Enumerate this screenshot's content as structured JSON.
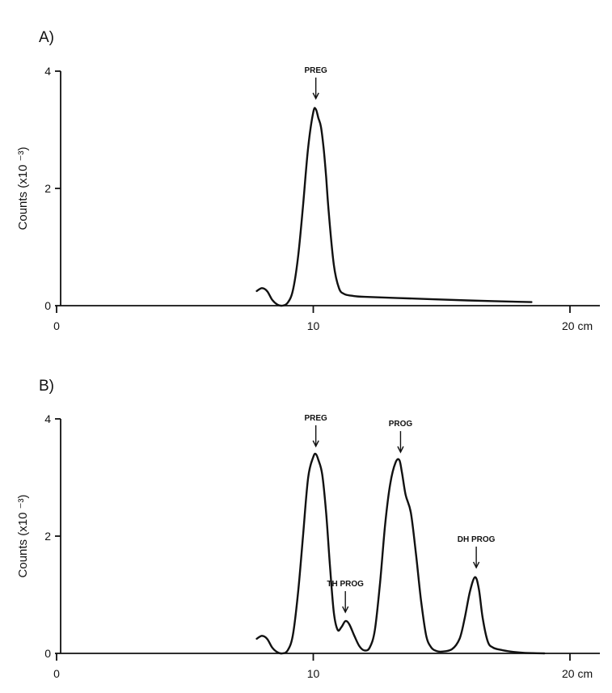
{
  "chart_data": [
    {
      "type": "line",
      "panel_label": "A)",
      "title": "",
      "xlabel": "",
      "ylabel": "Counts (x10 ⁻³)",
      "x_unit_label": "cm",
      "xlim": [
        0,
        21
      ],
      "ylim": [
        0,
        4
      ],
      "x_ticks": [
        0,
        10,
        20
      ],
      "y_ticks": [
        0,
        2,
        4
      ],
      "grid": false,
      "series": [
        {
          "x": [
            7.8,
            8.0,
            8.2,
            8.4,
            8.6,
            8.8,
            9.0,
            9.2,
            9.4,
            9.6,
            9.8,
            10.0,
            10.1,
            10.2,
            10.3,
            10.4,
            10.5,
            10.6,
            10.8,
            11.0,
            11.2,
            11.5,
            12.0,
            14.0,
            16.0,
            18.5
          ],
          "y": [
            0.25,
            0.3,
            0.25,
            0.1,
            0.02,
            0.0,
            0.05,
            0.25,
            0.8,
            1.7,
            2.7,
            3.3,
            3.35,
            3.2,
            3.05,
            2.7,
            2.2,
            1.6,
            0.7,
            0.3,
            0.2,
            0.17,
            0.15,
            0.12,
            0.09,
            0.06
          ]
        }
      ],
      "annotations": [
        {
          "text": "PREG",
          "x": 10.1,
          "y_arrow": 3.45
        }
      ]
    },
    {
      "type": "line",
      "panel_label": "B)",
      "title": "",
      "xlabel": "",
      "ylabel": "Counts (x10 ⁻³)",
      "x_unit_label": "cm",
      "xlim": [
        0,
        21
      ],
      "ylim": [
        0,
        4
      ],
      "x_ticks": [
        0,
        10,
        20
      ],
      "y_ticks": [
        0,
        2,
        4
      ],
      "grid": false,
      "series": [
        {
          "x": [
            7.8,
            8.0,
            8.2,
            8.4,
            8.6,
            8.8,
            9.0,
            9.2,
            9.4,
            9.6,
            9.8,
            10.0,
            10.1,
            10.2,
            10.35,
            10.5,
            10.65,
            10.8,
            10.95,
            11.1,
            11.25,
            11.4,
            11.6,
            11.8,
            12.0,
            12.2,
            12.4,
            12.6,
            12.8,
            13.0,
            13.2,
            13.35,
            13.45,
            13.6,
            13.8,
            14.0,
            14.2,
            14.4,
            14.6,
            14.8,
            15.0,
            15.4,
            15.7,
            15.9,
            16.1,
            16.3,
            16.45,
            16.6,
            16.8,
            17.0,
            17.3,
            17.7,
            18.2,
            19.0
          ],
          "y": [
            0.25,
            0.3,
            0.25,
            0.1,
            0.02,
            0.0,
            0.05,
            0.3,
            1.0,
            2.0,
            3.0,
            3.35,
            3.4,
            3.3,
            3.05,
            2.4,
            1.5,
            0.7,
            0.4,
            0.45,
            0.55,
            0.5,
            0.3,
            0.12,
            0.05,
            0.1,
            0.4,
            1.2,
            2.2,
            2.9,
            3.25,
            3.3,
            3.1,
            2.7,
            2.4,
            1.7,
            0.9,
            0.3,
            0.1,
            0.04,
            0.03,
            0.07,
            0.25,
            0.6,
            1.05,
            1.3,
            1.1,
            0.6,
            0.2,
            0.1,
            0.06,
            0.03,
            0.01,
            0.0
          ]
        }
      ],
      "annotations": [
        {
          "text": "PREG",
          "x": 10.1,
          "y_arrow": 3.45
        },
        {
          "text": "TH PROG",
          "x": 11.25,
          "y_arrow": 0.62
        },
        {
          "text": "PROG",
          "x": 13.4,
          "y_arrow": 3.35
        },
        {
          "text": "DH PROG",
          "x": 16.35,
          "y_arrow": 1.38
        }
      ]
    }
  ]
}
